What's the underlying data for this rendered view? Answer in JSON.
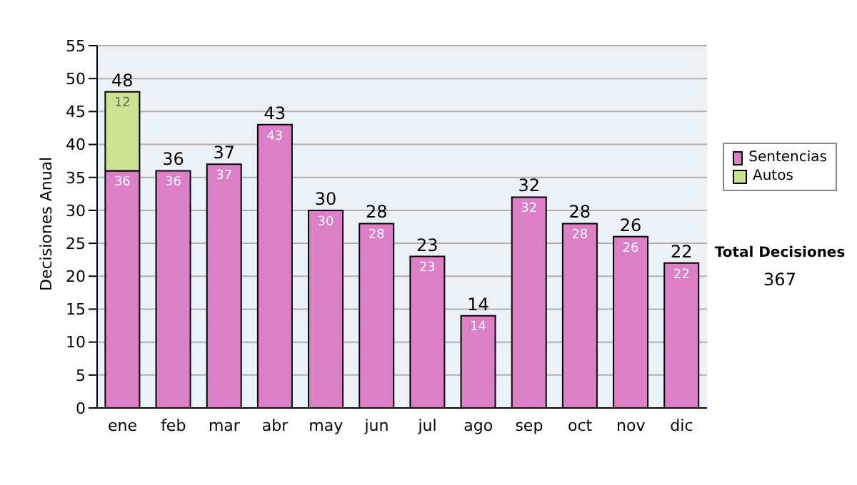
{
  "chart_data": {
    "type": "bar",
    "stacked": true,
    "ylabel": "Decisiones Anual",
    "categories": [
      "ene",
      "feb",
      "mar",
      "abr",
      "may",
      "jun",
      "jul",
      "ago",
      "sep",
      "oct",
      "nov",
      "dic"
    ],
    "series": [
      {
        "name": "Sentencias",
        "color": "#dd7fc6",
        "values": [
          36,
          36,
          37,
          43,
          30,
          28,
          23,
          14,
          32,
          28,
          26,
          22
        ]
      },
      {
        "name": "Autos",
        "color": "#cce38f",
        "values": [
          12,
          null,
          null,
          null,
          null,
          null,
          null,
          null,
          null,
          null,
          null,
          null
        ]
      }
    ],
    "ylim": [
      0,
      55
    ],
    "yticks": [
      0,
      5,
      10,
      15,
      20,
      25,
      30,
      35,
      40,
      45,
      50,
      55
    ],
    "grid": "y",
    "legend": "right",
    "data_labels": true,
    "totals": [
      "48",
      "36",
      "37",
      "43",
      "30",
      "28",
      "23",
      "14",
      "32",
      "28",
      "26",
      "22"
    ],
    "annotations": [
      "Total Decisiones",
      "367"
    ]
  }
}
